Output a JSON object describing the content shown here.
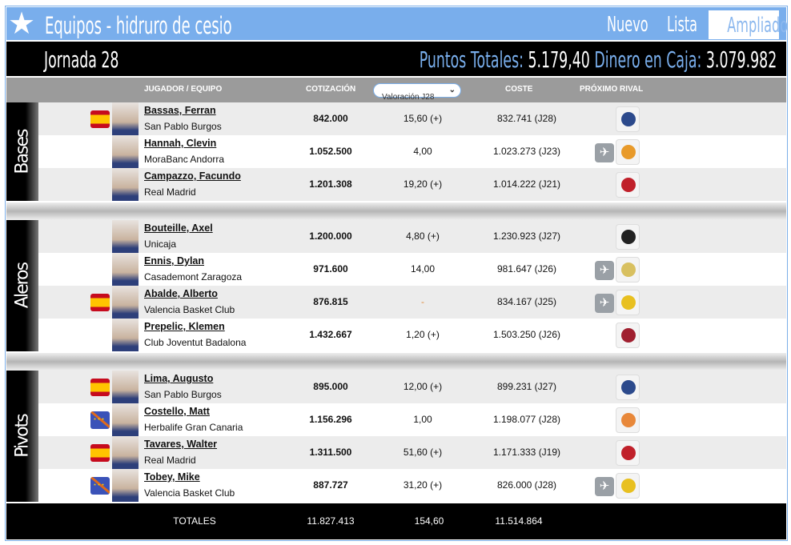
{
  "header": {
    "title": "Equipos - hidruro de cesio",
    "nav": [
      "Nuevo",
      "Lista",
      "Ampliado"
    ],
    "active_nav": "Ampliado"
  },
  "bar": {
    "jornada": "Jornada 28",
    "puntos_label": "Puntos Totales:",
    "puntos_value": "5.179,40",
    "dinero_label": "Dinero en Caja:",
    "dinero_value": "3.079.982"
  },
  "columns": {
    "player": "JUGADOR / EQUIPO",
    "cotizacion": "COTIZACIÓN",
    "valoracion_select": "Valoración J28",
    "coste": "COSTE",
    "rival": "PRÓXIMO RIVAL"
  },
  "sections": [
    {
      "label": "Bases",
      "players": [
        {
          "name": "Bassas, Ferran",
          "team": "San Pablo Burgos",
          "flag": "spain",
          "cotizacion": "842.000",
          "valoracion": "15,60 (+)",
          "coste": "832.741 (J28)",
          "away": false,
          "rival_color": "#2c4a8c"
        },
        {
          "name": "Hannah, Clevin",
          "team": "MoraBanc Andorra",
          "flag": "",
          "cotizacion": "1.052.500",
          "valoracion": "4,00",
          "coste": "1.023.273 (J23)",
          "away": true,
          "rival_color": "#e89a2a"
        },
        {
          "name": "Campazzo, Facundo",
          "team": "Real Madrid",
          "flag": "",
          "cotizacion": "1.201.308",
          "valoracion": "19,20 (+)",
          "coste": "1.014.222 (J21)",
          "away": false,
          "rival_color": "#c0202a"
        }
      ]
    },
    {
      "label": "Aleros",
      "players": [
        {
          "name": "Bouteille, Axel",
          "team": "Unicaja",
          "flag": "",
          "cotizacion": "1.200.000",
          "valoracion": "4,80 (+)",
          "coste": "1.230.923 (J27)",
          "away": false,
          "rival_color": "#222222"
        },
        {
          "name": "Ennis, Dylan",
          "team": "Casademont Zaragoza",
          "flag": "",
          "cotizacion": "971.600",
          "valoracion": "14,00",
          "coste": "981.647 (J26)",
          "away": true,
          "rival_color": "#d8c060"
        },
        {
          "name": "Abalde, Alberto",
          "team": "Valencia Basket Club",
          "flag": "spain",
          "cotizacion": "876.815",
          "valoracion": "-",
          "coste": "834.167 (J25)",
          "away": true,
          "rival_color": "#e8c020"
        },
        {
          "name": "Prepelic, Klemen",
          "team": "Club Joventut Badalona",
          "flag": "",
          "cotizacion": "1.432.667",
          "valoracion": "1,20 (+)",
          "coste": "1.503.250 (J26)",
          "away": false,
          "rival_color": "#a02030"
        }
      ]
    },
    {
      "label": "Pivots",
      "players": [
        {
          "name": "Lima, Augusto",
          "team": "San Pablo Burgos",
          "flag": "spain",
          "cotizacion": "895.000",
          "valoracion": "12,00 (+)",
          "coste": "899.231 (J27)",
          "away": false,
          "rival_color": "#2c4a8c"
        },
        {
          "name": "Costello, Matt",
          "team": "Herbalife Gran Canaria",
          "flag": "eu",
          "cotizacion": "1.156.296",
          "valoracion": "1,00",
          "coste": "1.198.077 (J28)",
          "away": false,
          "rival_color": "#e8883a"
        },
        {
          "name": "Tavares, Walter",
          "team": "Real Madrid",
          "flag": "spain",
          "cotizacion": "1.311.500",
          "valoracion": "51,60 (+)",
          "coste": "1.171.333 (J19)",
          "away": false,
          "rival_color": "#c0202a"
        },
        {
          "name": "Tobey, Mike",
          "team": "Valencia Basket Club",
          "flag": "eu",
          "cotizacion": "887.727",
          "valoracion": "31,20 (+)",
          "coste": "826.000 (J28)",
          "away": true,
          "rival_color": "#e8c020"
        }
      ]
    }
  ],
  "totals": {
    "label": "TOTALES",
    "cotizacion": "11.827.413",
    "valoracion": "154,60",
    "coste": "11.514.864"
  }
}
